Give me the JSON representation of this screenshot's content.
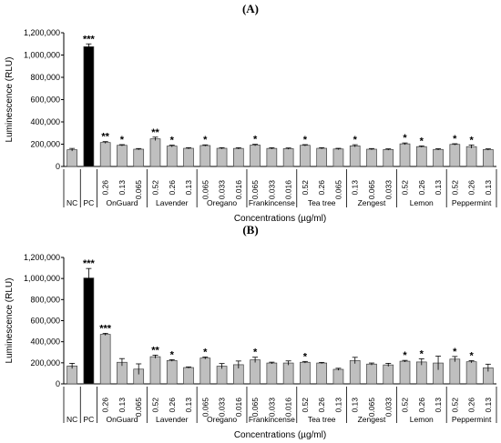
{
  "chart_data": [
    {
      "type": "bar",
      "panel_label": "(A)",
      "ylabel": "Luminescence (RLU)",
      "xlabel": "Concentrations (µg/ml)",
      "ylim": [
        0,
        1200000
      ],
      "yticks": [
        "0",
        "200,000",
        "400,000",
        "600,000",
        "800,000",
        "1,000,000",
        "1,200,000"
      ],
      "grid": false,
      "groups": [
        {
          "name": "NC",
          "bars": [
            {
              "conc": "",
              "value": 150000,
              "err": 12000,
              "sig": "",
              "color": "#bfbfbf"
            }
          ]
        },
        {
          "name": "PC",
          "bars": [
            {
              "conc": "",
              "value": 1075000,
              "err": 25000,
              "sig": "***",
              "color": "#000000"
            }
          ]
        },
        {
          "name": "OnGuard",
          "bars": [
            {
              "conc": "0.26",
              "value": 215000,
              "err": 8000,
              "sig": "**",
              "color": "#bfbfbf"
            },
            {
              "conc": "0.13",
              "value": 190000,
              "err": 6000,
              "sig": "*",
              "color": "#bfbfbf"
            },
            {
              "conc": "0.065",
              "value": 155000,
              "err": 6000,
              "sig": "",
              "color": "#bfbfbf"
            }
          ]
        },
        {
          "name": "Lavender",
          "bars": [
            {
              "conc": "0.52",
              "value": 248000,
              "err": 15000,
              "sig": "**",
              "color": "#bfbfbf"
            },
            {
              "conc": "0.26",
              "value": 183000,
              "err": 8000,
              "sig": "*",
              "color": "#bfbfbf"
            },
            {
              "conc": "0.13",
              "value": 163000,
              "err": 6000,
              "sig": "",
              "color": "#bfbfbf"
            }
          ]
        },
        {
          "name": "Oregano",
          "bars": [
            {
              "conc": "0.065",
              "value": 188000,
              "err": 6000,
              "sig": "*",
              "color": "#bfbfbf"
            },
            {
              "conc": "0.033",
              "value": 163000,
              "err": 6000,
              "sig": "",
              "color": "#bfbfbf"
            },
            {
              "conc": "0.016",
              "value": 162000,
              "err": 6000,
              "sig": "",
              "color": "#bfbfbf"
            }
          ]
        },
        {
          "name": "Frankincense",
          "bars": [
            {
              "conc": "0.065",
              "value": 192000,
              "err": 7000,
              "sig": "*",
              "color": "#bfbfbf"
            },
            {
              "conc": "0.033",
              "value": 162000,
              "err": 6000,
              "sig": "",
              "color": "#bfbfbf"
            },
            {
              "conc": "0.016",
              "value": 160000,
              "err": 6000,
              "sig": "",
              "color": "#bfbfbf"
            }
          ]
        },
        {
          "name": "Tea tree",
          "bars": [
            {
              "conc": "0.52",
              "value": 190000,
              "err": 6000,
              "sig": "*",
              "color": "#bfbfbf"
            },
            {
              "conc": "0.26",
              "value": 163000,
              "err": 6000,
              "sig": "",
              "color": "#bfbfbf"
            },
            {
              "conc": "0.065",
              "value": 157000,
              "err": 6000,
              "sig": "",
              "color": "#bfbfbf"
            }
          ]
        },
        {
          "name": "Zengest",
          "bars": [
            {
              "conc": "0.13",
              "value": 185000,
              "err": 10000,
              "sig": "*",
              "color": "#bfbfbf"
            },
            {
              "conc": "0.065",
              "value": 155000,
              "err": 6000,
              "sig": "",
              "color": "#bfbfbf"
            },
            {
              "conc": "0.033",
              "value": 152000,
              "err": 6000,
              "sig": "",
              "color": "#bfbfbf"
            }
          ]
        },
        {
          "name": "Lemon",
          "bars": [
            {
              "conc": "0.52",
              "value": 203000,
              "err": 8000,
              "sig": "*",
              "color": "#bfbfbf"
            },
            {
              "conc": "0.26",
              "value": 178000,
              "err": 6000,
              "sig": "*",
              "color": "#bfbfbf"
            },
            {
              "conc": "0.13",
              "value": 153000,
              "err": 6000,
              "sig": "",
              "color": "#bfbfbf"
            }
          ]
        },
        {
          "name": "Peppermint",
          "bars": [
            {
              "conc": "0.52",
              "value": 198000,
              "err": 6000,
              "sig": "*",
              "color": "#bfbfbf"
            },
            {
              "conc": "0.26",
              "value": 178000,
              "err": 15000,
              "sig": "*",
              "color": "#bfbfbf"
            },
            {
              "conc": "0.13",
              "value": 152000,
              "err": 6000,
              "sig": "",
              "color": "#bfbfbf"
            }
          ]
        }
      ]
    },
    {
      "type": "bar",
      "panel_label": "(B)",
      "ylabel": "Luminescence (RLU)",
      "xlabel": "Concentrations (µg/ml)",
      "ylim": [
        0,
        1200000
      ],
      "yticks": [
        "0",
        "200,000",
        "400,000",
        "600,000",
        "800,000",
        "1,000,000",
        "1,200,000"
      ],
      "grid": false,
      "groups": [
        {
          "name": "NC",
          "bars": [
            {
              "conc": "",
              "value": 170000,
              "err": 25000,
              "sig": "",
              "color": "#bfbfbf"
            }
          ]
        },
        {
          "name": "PC",
          "bars": [
            {
              "conc": "",
              "value": 1005000,
              "err": 90000,
              "sig": "***",
              "color": "#000000"
            }
          ]
        },
        {
          "name": "OnGuard",
          "bars": [
            {
              "conc": "0.26",
              "value": 470000,
              "err": 10000,
              "sig": "***",
              "color": "#bfbfbf"
            },
            {
              "conc": "0.13",
              "value": 205000,
              "err": 35000,
              "sig": "",
              "color": "#bfbfbf"
            },
            {
              "conc": "0.065",
              "value": 140000,
              "err": 50000,
              "sig": "",
              "color": "#bfbfbf"
            }
          ]
        },
        {
          "name": "Lavender",
          "bars": [
            {
              "conc": "0.52",
              "value": 258000,
              "err": 15000,
              "sig": "**",
              "color": "#bfbfbf"
            },
            {
              "conc": "0.26",
              "value": 222000,
              "err": 8000,
              "sig": "*",
              "color": "#bfbfbf"
            },
            {
              "conc": "0.13",
              "value": 155000,
              "err": 6000,
              "sig": "",
              "color": "#bfbfbf"
            }
          ]
        },
        {
          "name": "Oregano",
          "bars": [
            {
              "conc": "0.065",
              "value": 245000,
              "err": 10000,
              "sig": "*",
              "color": "#bfbfbf"
            },
            {
              "conc": "0.033",
              "value": 168000,
              "err": 25000,
              "sig": "",
              "color": "#bfbfbf"
            },
            {
              "conc": "0.016",
              "value": 182000,
              "err": 35000,
              "sig": "",
              "color": "#bfbfbf"
            }
          ]
        },
        {
          "name": "Frankincense",
          "bars": [
            {
              "conc": "0.065",
              "value": 228000,
              "err": 25000,
              "sig": "*",
              "color": "#bfbfbf"
            },
            {
              "conc": "0.033",
              "value": 198000,
              "err": 8000,
              "sig": "",
              "color": "#bfbfbf"
            },
            {
              "conc": "0.016",
              "value": 198000,
              "err": 20000,
              "sig": "",
              "color": "#bfbfbf"
            }
          ]
        },
        {
          "name": "Tea tree",
          "bars": [
            {
              "conc": "0.52",
              "value": 205000,
              "err": 8000,
              "sig": "*",
              "color": "#bfbfbf"
            },
            {
              "conc": "0.26",
              "value": 198000,
              "err": 6000,
              "sig": "",
              "color": "#bfbfbf"
            },
            {
              "conc": "0.13",
              "value": 138000,
              "err": 10000,
              "sig": "",
              "color": "#bfbfbf"
            }
          ]
        },
        {
          "name": "Zengest",
          "bars": [
            {
              "conc": "0.13",
              "value": 222000,
              "err": 30000,
              "sig": "",
              "color": "#bfbfbf"
            },
            {
              "conc": "0.065",
              "value": 188000,
              "err": 10000,
              "sig": "",
              "color": "#bfbfbf"
            },
            {
              "conc": "0.033",
              "value": 180000,
              "err": 15000,
              "sig": "",
              "color": "#bfbfbf"
            }
          ]
        },
        {
          "name": "Lemon",
          "bars": [
            {
              "conc": "0.52",
              "value": 215000,
              "err": 8000,
              "sig": "*",
              "color": "#bfbfbf"
            },
            {
              "conc": "0.26",
              "value": 208000,
              "err": 30000,
              "sig": "*",
              "color": "#bfbfbf"
            },
            {
              "conc": "0.13",
              "value": 198000,
              "err": 65000,
              "sig": "",
              "color": "#bfbfbf"
            }
          ]
        },
        {
          "name": "Peppermint",
          "bars": [
            {
              "conc": "0.52",
              "value": 235000,
              "err": 25000,
              "sig": "*",
              "color": "#bfbfbf"
            },
            {
              "conc": "0.26",
              "value": 210000,
              "err": 10000,
              "sig": "*",
              "color": "#bfbfbf"
            },
            {
              "conc": "0.13",
              "value": 152000,
              "err": 35000,
              "sig": "",
              "color": "#bfbfbf"
            }
          ]
        }
      ]
    }
  ]
}
